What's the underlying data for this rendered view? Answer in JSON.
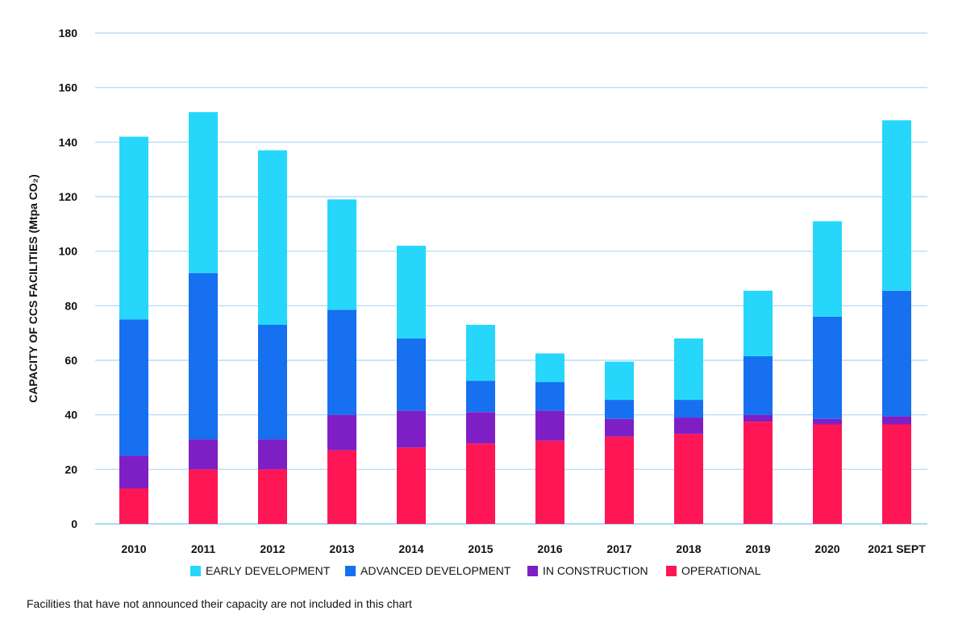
{
  "chart_data": {
    "type": "bar",
    "stacked": true,
    "categories": [
      "2010",
      "2011",
      "2012",
      "2013",
      "2014",
      "2015",
      "2016",
      "2017",
      "2018",
      "2019",
      "2020",
      "2021 SEPT"
    ],
    "series": [
      {
        "name": "OPERATIONAL",
        "color": "#ff1654",
        "values": [
          13,
          20,
          20,
          27,
          28,
          29.5,
          30.5,
          32,
          33,
          37.5,
          36.5,
          36.5
        ]
      },
      {
        "name": "IN CONSTRUCTION",
        "color": "#7e1fc6",
        "values": [
          12,
          11,
          11,
          13,
          13.5,
          11.5,
          11,
          6.5,
          6,
          2.5,
          2,
          3
        ]
      },
      {
        "name": "ADVANCED DEVELOPMENT",
        "color": "#1670f0",
        "values": [
          50,
          61,
          42,
          38.5,
          26.5,
          11.5,
          10.5,
          7,
          6.5,
          21.5,
          37.5,
          46
        ]
      },
      {
        "name": "EARLY DEVELOPMENT",
        "color": "#26d7fb",
        "values": [
          67,
          59,
          64,
          40.5,
          34,
          20.5,
          10.5,
          14,
          22.5,
          24,
          35,
          62.5
        ]
      }
    ],
    "legend_order": [
      "EARLY DEVELOPMENT",
      "ADVANCED DEVELOPMENT",
      "IN CONSTRUCTION",
      "OPERATIONAL"
    ],
    "ylabel": "CAPACITY OF CCS FACILITIES (Mtpa CO₂)",
    "xlabel": "",
    "ylim": [
      0,
      180
    ],
    "yticks": [
      0,
      20,
      40,
      60,
      80,
      100,
      120,
      140,
      160,
      180
    ],
    "grid": true,
    "grid_color": "#a8d8f8",
    "legend_position": "bottom"
  },
  "legend": {
    "early": "EARLY DEVELOPMENT",
    "advanced": "ADVANCED DEVELOPMENT",
    "construction": "IN CONSTRUCTION",
    "operational": "OPERATIONAL"
  },
  "footnote": "Facilities that have not announced their capacity are not included in this chart"
}
